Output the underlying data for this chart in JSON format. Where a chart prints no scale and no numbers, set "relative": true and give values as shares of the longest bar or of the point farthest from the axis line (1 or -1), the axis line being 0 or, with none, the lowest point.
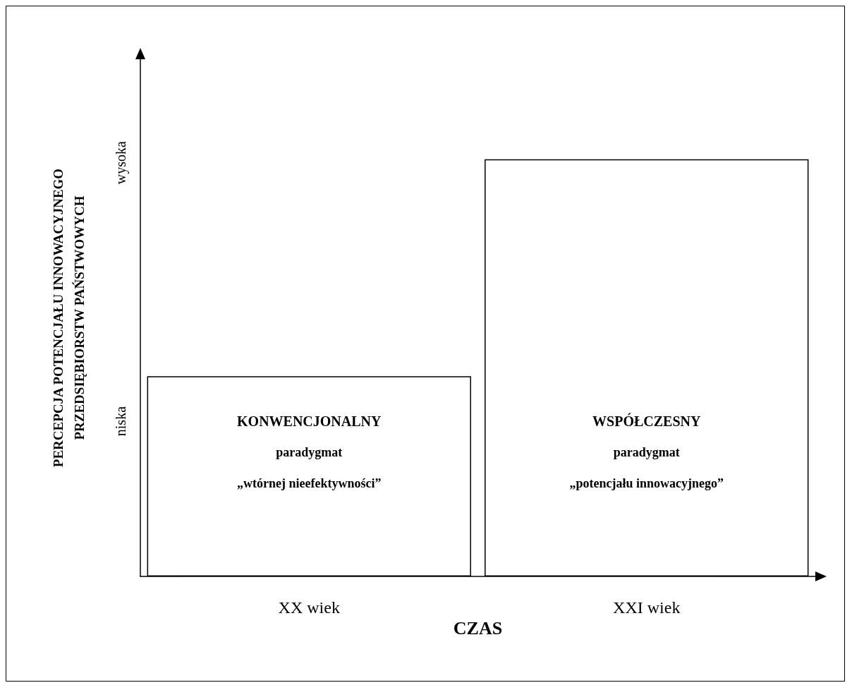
{
  "chart_data": {
    "type": "bar",
    "relative": true,
    "categories": [
      "XX wiek",
      "XXI wiek"
    ],
    "values": [
      0.48,
      1
    ],
    "color": "#ffffff",
    "xlabel": "CZAS",
    "ylabel": "PERCEPCJA POTENCJAŁU INNOWACYJNEGO\nPRZEDSIĘBIORSTW PAŃSTWOWYCH",
    "grid": false,
    "annotations": [
      "niska",
      "wysoka",
      "KONWENCJONALNY",
      "paradygmat",
      "„wtórnej nieefektywności”",
      "WSPÓŁCZESNY",
      "paradygmat",
      "„potencjału innowacyjnego”"
    ]
  }
}
